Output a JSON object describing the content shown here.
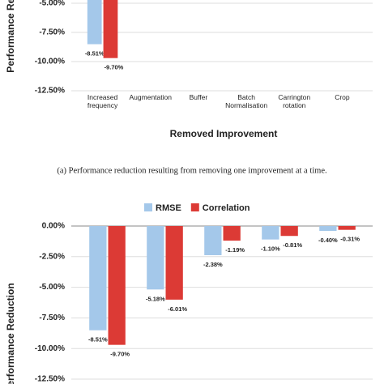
{
  "chart_data": [
    {
      "type": "bar",
      "y_label": "Performance Reduction",
      "x_label": "Removed Improvement",
      "categories": [
        "Increased frequency",
        "Augmentation",
        "Buffer",
        "Batch Normalisation",
        "Carrington rotation",
        "Crop"
      ],
      "series": [
        {
          "color": "#a4c8ea",
          "values": [
            -8.51,
            null,
            null,
            null,
            null,
            null
          ],
          "value_labels": [
            "-8.51%",
            null,
            null,
            null,
            null,
            null
          ]
        },
        {
          "color": "#dc3a35",
          "values": [
            -9.7,
            null,
            null,
            null,
            null,
            null
          ],
          "value_labels": [
            "-9.70%",
            null,
            null,
            null,
            null,
            null
          ]
        }
      ],
      "ylim": [
        -12.5,
        0
      ],
      "yticks": [
        {
          "value": -12.5,
          "label": "-12.50%"
        },
        {
          "value": -10,
          "label": "-10.00%"
        },
        {
          "value": -7.5,
          "label": "-7.50%"
        },
        {
          "value": -5,
          "label": "-5.00%"
        }
      ],
      "grid": true
    },
    {
      "type": "bar",
      "y_label": "Performance Reduction",
      "categories": [
        null,
        null,
        null,
        null,
        null
      ],
      "series": [
        {
          "name": "RMSE",
          "color": "#a4c8ea",
          "values": [
            -8.51,
            -5.18,
            -2.38,
            -1.1,
            -0.4
          ],
          "value_labels": [
            "-8.51%",
            "-5.18%",
            "-2.38%",
            "-1.10%",
            "-0.40%"
          ]
        },
        {
          "name": "Correlation",
          "color": "#dc3a35",
          "values": [
            -9.7,
            -6.01,
            -1.19,
            -0.81,
            -0.31
          ],
          "value_labels": [
            "-9.70%",
            "-6.01%",
            "-1.19%",
            "-0.81%",
            "-0.31%"
          ]
        }
      ],
      "ylim": [
        -12.5,
        0
      ],
      "yticks": [
        {
          "value": -12.5,
          "label": "-12.50%"
        },
        {
          "value": -10,
          "label": "-10.00%"
        },
        {
          "value": -7.5,
          "label": "-7.50%"
        },
        {
          "value": -5,
          "label": "-5.00%"
        },
        {
          "value": -2.5,
          "label": "-2.50%"
        },
        {
          "value": 0,
          "label": "0.00%"
        }
      ],
      "grid": true,
      "legend": "top"
    }
  ],
  "caption": "(a) Performance reduction resulting from removing one improvement at a time."
}
